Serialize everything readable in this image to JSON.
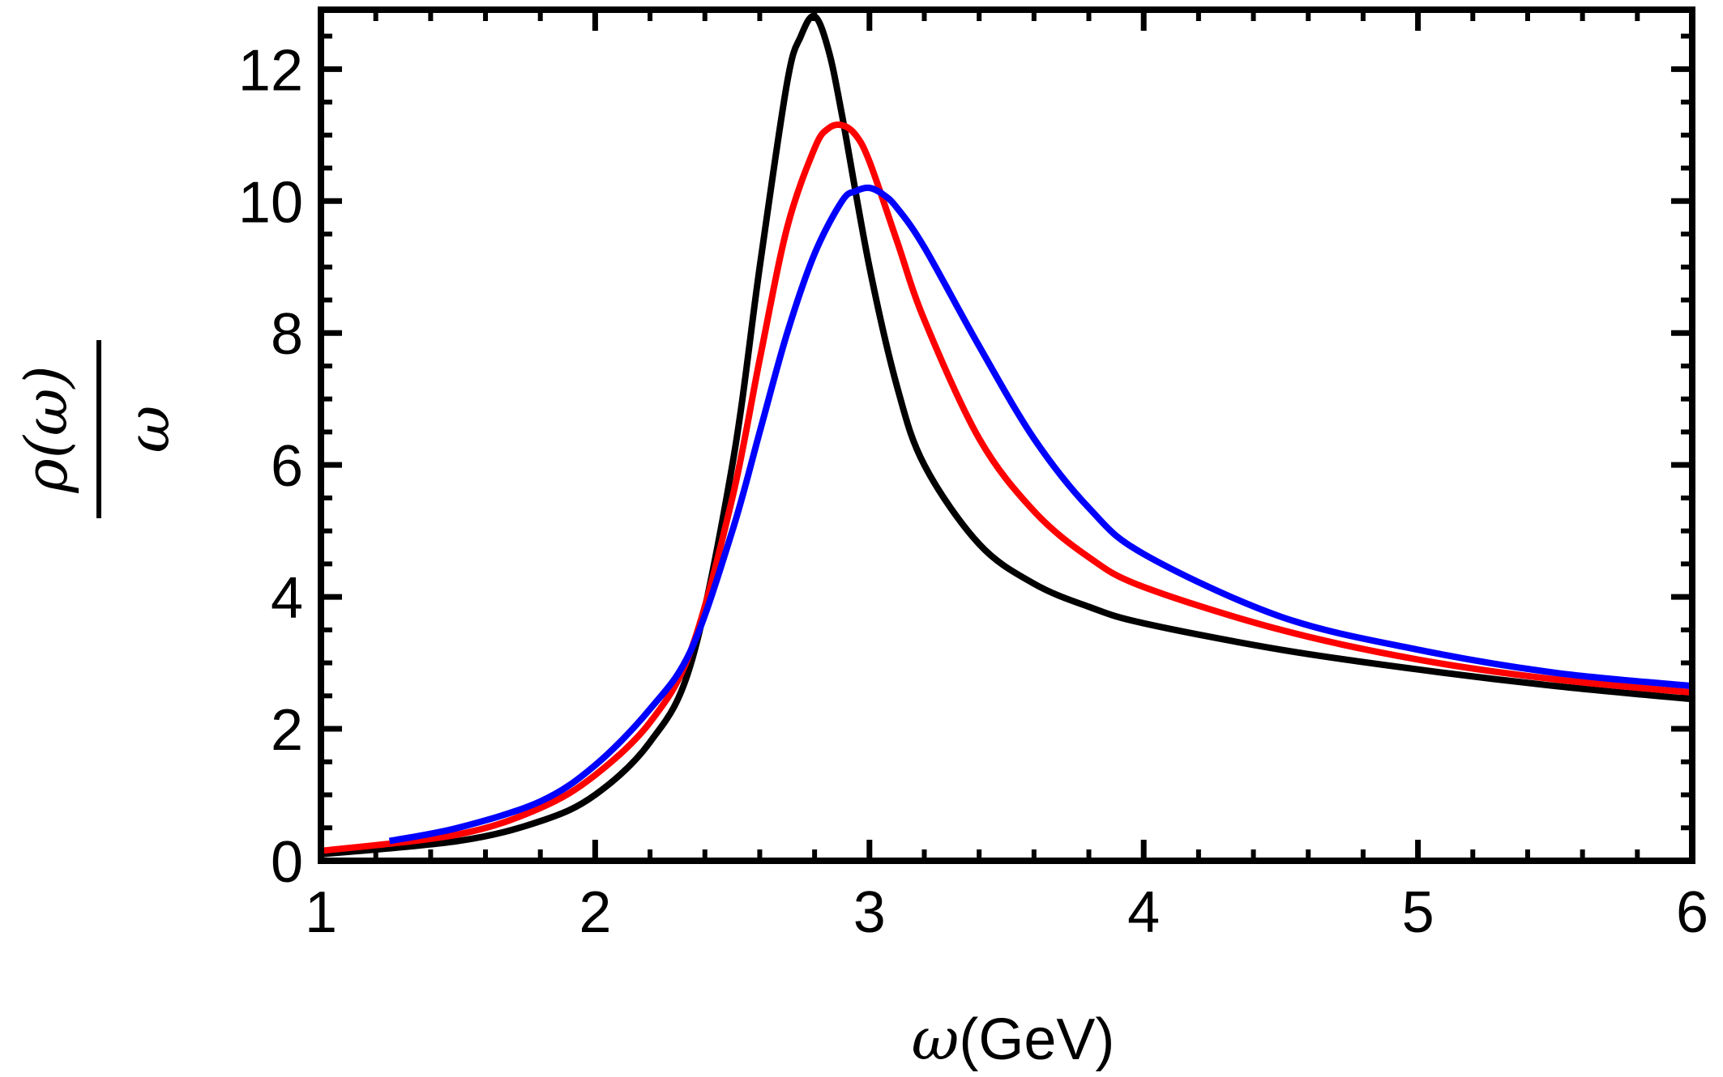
{
  "chart_data": {
    "type": "line",
    "title": "",
    "xlabel": {
      "symbol": "ω",
      "unit": "(GeV)"
    },
    "ylabel": {
      "numerator": "ρ(ω)",
      "denominator": "ω"
    },
    "xlim": [
      1,
      6
    ],
    "ylim": [
      0,
      12.9
    ],
    "xticks": [
      "1",
      "2",
      "3",
      "4",
      "5",
      "6"
    ],
    "yticks": [
      "0",
      "2",
      "4",
      "6",
      "8",
      "10",
      "12"
    ],
    "grid": false,
    "legend": "none",
    "series": [
      {
        "color": "#000000",
        "x": [
          1.0,
          1.5,
          1.8,
          2.0,
          2.2,
          2.35,
          2.5,
          2.6,
          2.7,
          2.75,
          2.8,
          2.85,
          2.9,
          3.0,
          3.1,
          3.2,
          3.4,
          3.6,
          3.8,
          4.0,
          4.5,
          5.0,
          5.5,
          6.0
        ],
        "y": [
          0.1,
          0.3,
          0.6,
          1.0,
          1.8,
          3.0,
          6.0,
          9.0,
          11.8,
          12.5,
          12.8,
          12.3,
          11.3,
          9.0,
          7.2,
          6.0,
          4.8,
          4.2,
          3.85,
          3.6,
          3.2,
          2.9,
          2.65,
          2.45
        ]
      },
      {
        "color": "#ff0000",
        "x": [
          1.0,
          1.5,
          1.8,
          2.0,
          2.2,
          2.35,
          2.5,
          2.6,
          2.7,
          2.8,
          2.85,
          2.9,
          2.95,
          3.0,
          3.1,
          3.2,
          3.4,
          3.6,
          3.8,
          4.0,
          4.5,
          5.0,
          5.5,
          6.0
        ],
        "y": [
          0.15,
          0.4,
          0.8,
          1.3,
          2.1,
          3.2,
          5.5,
          7.6,
          9.6,
          10.8,
          11.1,
          11.15,
          11.0,
          10.6,
          9.4,
          8.2,
          6.4,
          5.3,
          4.6,
          4.15,
          3.5,
          3.05,
          2.75,
          2.55
        ]
      },
      {
        "color": "#0000ff",
        "x": [
          1.25,
          1.5,
          1.8,
          2.0,
          2.2,
          2.35,
          2.5,
          2.6,
          2.7,
          2.8,
          2.9,
          2.95,
          3.0,
          3.05,
          3.1,
          3.2,
          3.4,
          3.6,
          3.8,
          4.0,
          4.5,
          5.0,
          5.5,
          6.0
        ],
        "y": [
          0.3,
          0.5,
          0.9,
          1.45,
          2.3,
          3.2,
          5.0,
          6.5,
          8.0,
          9.2,
          10.0,
          10.15,
          10.2,
          10.1,
          9.9,
          9.3,
          7.8,
          6.4,
          5.35,
          4.65,
          3.7,
          3.2,
          2.85,
          2.65
        ]
      }
    ]
  }
}
